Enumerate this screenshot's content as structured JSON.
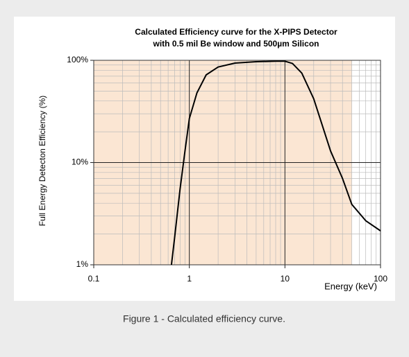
{
  "chart_data": {
    "type": "line",
    "title": "Calculated Efficiency curve for the X-PIPS Detector",
    "subtitle": "with 0.5 mil Be window and 500µm Silicon",
    "x_label": "Energy (keV)",
    "y_label": "Full Energy Detecton Efficiency (%)",
    "x": [
      0.65,
      0.7,
      0.8,
      0.9,
      1,
      1.2,
      1.5,
      2,
      3,
      5,
      8,
      10,
      12,
      15,
      20,
      30,
      40,
      50,
      70,
      100
    ],
    "values": [
      1,
      1.8,
      5.5,
      13,
      27,
      48,
      72,
      86,
      94,
      97,
      98,
      98,
      93,
      75,
      42,
      13,
      7,
      3.9,
      2.7,
      2.15
    ],
    "color": "#000000",
    "xlim": [
      0.1,
      100
    ],
    "xticks": [
      0.1,
      1,
      10,
      100
    ],
    "ylim": [
      1,
      100
    ],
    "yticks": [
      {
        "value": 1,
        "label": "1%"
      },
      {
        "value": 10,
        "label": "10%"
      },
      {
        "value": 100,
        "label": "100%"
      }
    ],
    "log_x": true,
    "log_y": true,
    "grid": true,
    "shaded_xrange": [
      0.1,
      50
    ],
    "shade_color": "#fbe6d3"
  },
  "caption": "Figure 1 - Calculated efficiency curve."
}
